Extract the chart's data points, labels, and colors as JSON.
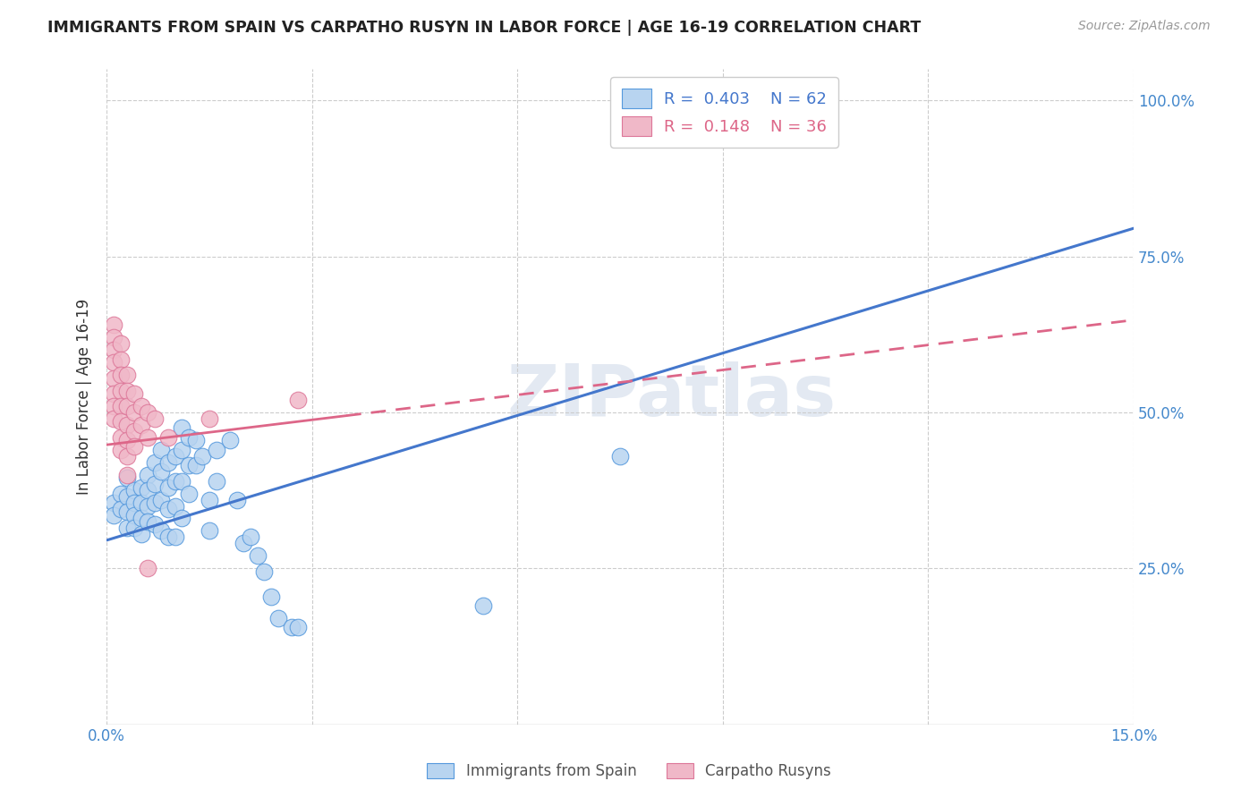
{
  "title": "IMMIGRANTS FROM SPAIN VS CARPATHO RUSYN IN LABOR FORCE | AGE 16-19 CORRELATION CHART",
  "source": "Source: ZipAtlas.com",
  "ylabel": "In Labor Force | Age 16-19",
  "x_min": 0.0,
  "x_max": 0.15,
  "y_min": 0.0,
  "y_max": 1.05,
  "x_tick_positions": [
    0.0,
    0.03,
    0.06,
    0.09,
    0.12,
    0.15
  ],
  "x_tick_labels": [
    "0.0%",
    "",
    "",
    "",
    "",
    "15.0%"
  ],
  "y_tick_positions": [
    0.25,
    0.5,
    0.75,
    1.0
  ],
  "y_tick_labels": [
    "25.0%",
    "50.0%",
    "75.0%",
    "100.0%"
  ],
  "legend_R_spain": "0.403",
  "legend_N_spain": "62",
  "legend_R_rusyn": "0.148",
  "legend_N_rusyn": "36",
  "spain_fill": "#b8d4f0",
  "rusyn_fill": "#f0b8c8",
  "spain_edge": "#5599dd",
  "rusyn_edge": "#dd7799",
  "spain_line_color": "#4477cc",
  "rusyn_line_color": "#dd6688",
  "watermark": "ZIPatlas",
  "spain_scatter": [
    [
      0.001,
      0.355
    ],
    [
      0.001,
      0.335
    ],
    [
      0.002,
      0.37
    ],
    [
      0.002,
      0.345
    ],
    [
      0.003,
      0.395
    ],
    [
      0.003,
      0.365
    ],
    [
      0.003,
      0.34
    ],
    [
      0.003,
      0.315
    ],
    [
      0.004,
      0.375
    ],
    [
      0.004,
      0.355
    ],
    [
      0.004,
      0.335
    ],
    [
      0.004,
      0.315
    ],
    [
      0.005,
      0.38
    ],
    [
      0.005,
      0.355
    ],
    [
      0.005,
      0.33
    ],
    [
      0.005,
      0.305
    ],
    [
      0.006,
      0.4
    ],
    [
      0.006,
      0.375
    ],
    [
      0.006,
      0.35
    ],
    [
      0.006,
      0.325
    ],
    [
      0.007,
      0.42
    ],
    [
      0.007,
      0.385
    ],
    [
      0.007,
      0.355
    ],
    [
      0.007,
      0.32
    ],
    [
      0.008,
      0.44
    ],
    [
      0.008,
      0.405
    ],
    [
      0.008,
      0.36
    ],
    [
      0.008,
      0.31
    ],
    [
      0.009,
      0.42
    ],
    [
      0.009,
      0.38
    ],
    [
      0.009,
      0.345
    ],
    [
      0.009,
      0.3
    ],
    [
      0.01,
      0.43
    ],
    [
      0.01,
      0.39
    ],
    [
      0.01,
      0.35
    ],
    [
      0.01,
      0.3
    ],
    [
      0.011,
      0.475
    ],
    [
      0.011,
      0.44
    ],
    [
      0.011,
      0.39
    ],
    [
      0.011,
      0.33
    ],
    [
      0.012,
      0.46
    ],
    [
      0.012,
      0.415
    ],
    [
      0.012,
      0.37
    ],
    [
      0.013,
      0.455
    ],
    [
      0.013,
      0.415
    ],
    [
      0.014,
      0.43
    ],
    [
      0.015,
      0.36
    ],
    [
      0.015,
      0.31
    ],
    [
      0.016,
      0.44
    ],
    [
      0.016,
      0.39
    ],
    [
      0.018,
      0.455
    ],
    [
      0.019,
      0.36
    ],
    [
      0.02,
      0.29
    ],
    [
      0.021,
      0.3
    ],
    [
      0.022,
      0.27
    ],
    [
      0.023,
      0.245
    ],
    [
      0.024,
      0.205
    ],
    [
      0.025,
      0.17
    ],
    [
      0.027,
      0.155
    ],
    [
      0.028,
      0.155
    ],
    [
      0.055,
      0.19
    ],
    [
      0.075,
      0.43
    ]
  ],
  "rusyn_scatter": [
    [
      0.001,
      0.64
    ],
    [
      0.001,
      0.62
    ],
    [
      0.001,
      0.6
    ],
    [
      0.001,
      0.58
    ],
    [
      0.001,
      0.555
    ],
    [
      0.001,
      0.53
    ],
    [
      0.001,
      0.51
    ],
    [
      0.001,
      0.49
    ],
    [
      0.002,
      0.61
    ],
    [
      0.002,
      0.585
    ],
    [
      0.002,
      0.56
    ],
    [
      0.002,
      0.535
    ],
    [
      0.002,
      0.51
    ],
    [
      0.002,
      0.485
    ],
    [
      0.002,
      0.46
    ],
    [
      0.002,
      0.44
    ],
    [
      0.003,
      0.56
    ],
    [
      0.003,
      0.535
    ],
    [
      0.003,
      0.51
    ],
    [
      0.003,
      0.48
    ],
    [
      0.003,
      0.455
    ],
    [
      0.003,
      0.43
    ],
    [
      0.003,
      0.4
    ],
    [
      0.004,
      0.53
    ],
    [
      0.004,
      0.5
    ],
    [
      0.004,
      0.47
    ],
    [
      0.004,
      0.445
    ],
    [
      0.005,
      0.51
    ],
    [
      0.005,
      0.48
    ],
    [
      0.006,
      0.5
    ],
    [
      0.006,
      0.46
    ],
    [
      0.006,
      0.25
    ],
    [
      0.007,
      0.49
    ],
    [
      0.009,
      0.46
    ],
    [
      0.015,
      0.49
    ],
    [
      0.028,
      0.52
    ]
  ],
  "spain_line_x": [
    0.0,
    0.15
  ],
  "spain_line_y": [
    0.295,
    0.795
  ],
  "rusyn_line_x": [
    0.0,
    0.15
  ],
  "rusyn_line_y": [
    0.448,
    0.648
  ]
}
